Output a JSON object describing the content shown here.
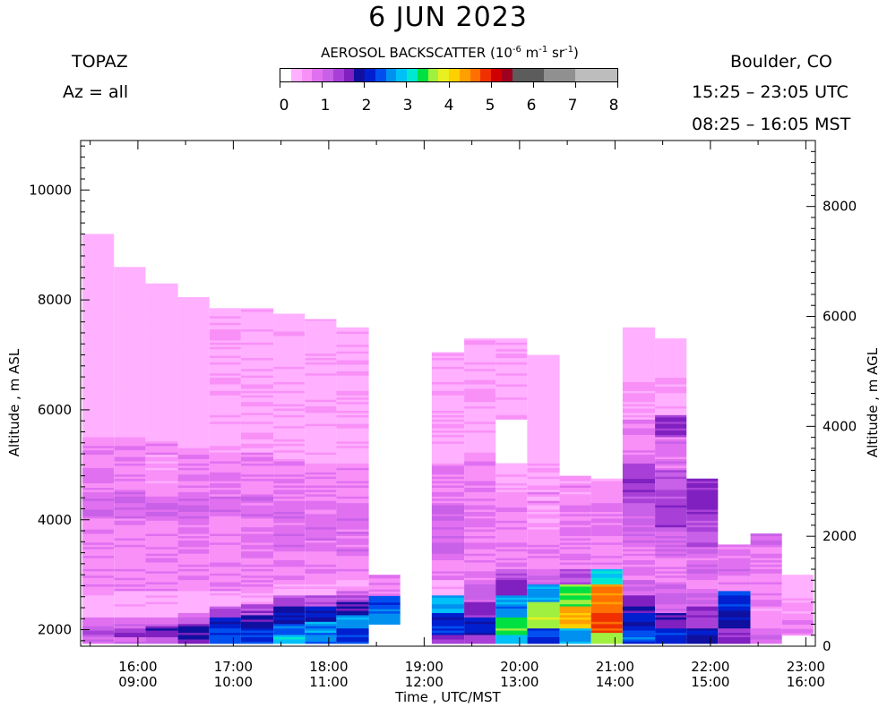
{
  "header": {
    "title": "6 JUN 2023",
    "site": "TOPAZ",
    "azimuth": "Az = all",
    "location": "Boulder, CO",
    "utc_range": "15:25 – 23:05 UTC",
    "mst_range": "08:25 – 16:05 MST"
  },
  "colorbar": {
    "title_prefix": "AEROSOL BACKSCATTER (10",
    "title_exp1": "-6",
    "title_mid1": " m",
    "title_exp2": "-1",
    "title_mid2": " sr",
    "title_exp3": "-1",
    "title_suffix": ")",
    "tick_labels": [
      "0",
      "1",
      "2",
      "3",
      "4",
      "5",
      "6",
      "7",
      "8"
    ],
    "colors": [
      "#ffffff",
      "#ffb0ff",
      "#f890f8",
      "#e070f0",
      "#c860e8",
      "#a840d8",
      "#8020c0",
      "#1010a0",
      "#0020d0",
      "#0050f0",
      "#0090f0",
      "#00c0f8",
      "#00e8d0",
      "#00e040",
      "#a0f040",
      "#e8f020",
      "#ffd000",
      "#ffa000",
      "#ff7000",
      "#f03000",
      "#d00000",
      "#a00020",
      "#5c5c5c",
      "#5c5c5c",
      "#5c5c5c",
      "#909090",
      "#909090",
      "#909090",
      "#bdbdbd",
      "#bdbdbd",
      "#bdbdbd",
      "#bdbdbd"
    ]
  },
  "chart_data": {
    "type": "heatmap",
    "title": "6 JUN 2023",
    "xlabel": "Time , UTC/MST",
    "ylabel_left": "Altitude , m ASL",
    "ylabel_right": "Altitude , m AGL",
    "x_ticks_utc": [
      "16:00",
      "17:00",
      "18:00",
      "19:00",
      "20:00",
      "21:00",
      "22:00",
      "23:00"
    ],
    "x_ticks_mst": [
      "09:00",
      "10:00",
      "11:00",
      "12:00",
      "13:00",
      "14:00",
      "15:00",
      "16:00"
    ],
    "x_range_hours_utc": [
      15.4,
      23.1
    ],
    "y_ticks_asl": [
      2000,
      4000,
      6000,
      8000,
      10000
    ],
    "y_ticks_agl": [
      0,
      2000,
      4000,
      6000,
      8000
    ],
    "ylim_asl": [
      1700,
      10900
    ],
    "agl_offset_m": 1700,
    "units": "10^-6 m^-1 sr^-1",
    "value_range": [
      0,
      8
    ],
    "profiles": [
      {
        "t_start": 15.42,
        "t_end": 15.75,
        "top": 9200,
        "layers": [
          [
            1750,
            0.9,
            0
          ],
          [
            1850,
            1.2,
            0
          ],
          [
            2000,
            0.8,
            0
          ],
          [
            2200,
            0.3,
            0
          ],
          [
            2700,
            0.6,
            0
          ],
          [
            4000,
            0.9,
            0
          ],
          [
            4500,
            0.6,
            0
          ],
          [
            5500,
            0.2,
            0
          ]
        ]
      },
      {
        "t_start": 15.75,
        "t_end": 16.08,
        "top": 8600,
        "layers": [
          [
            1750,
            0.9,
            0
          ],
          [
            1850,
            1.4,
            0
          ],
          [
            2000,
            0.8,
            0
          ],
          [
            2200,
            0.3,
            0
          ],
          [
            2700,
            0.6,
            0
          ],
          [
            4000,
            0.9,
            0
          ],
          [
            4500,
            0.6,
            0
          ],
          [
            5500,
            0.2,
            0
          ]
        ]
      },
      {
        "t_start": 16.08,
        "t_end": 16.42,
        "top": 8300,
        "layers": [
          [
            1750,
            1.1,
            0
          ],
          [
            1850,
            1.6,
            0
          ],
          [
            2050,
            1.0,
            0
          ],
          [
            2200,
            0.3,
            0
          ],
          [
            2700,
            0.6,
            0
          ],
          [
            4000,
            0.9,
            0
          ],
          [
            4400,
            0.5,
            0
          ],
          [
            5400,
            0.2,
            0
          ]
        ]
      },
      {
        "t_start": 16.42,
        "t_end": 16.75,
        "top": 8050,
        "layers": [
          [
            1750,
            1.6,
            0
          ],
          [
            1950,
            1.8,
            0
          ],
          [
            2100,
            1.0,
            0
          ],
          [
            2300,
            0.3,
            0
          ],
          [
            2700,
            0.6,
            0
          ],
          [
            4000,
            0.9,
            0
          ],
          [
            4400,
            0.6,
            0
          ],
          [
            5300,
            0.2,
            0
          ]
        ]
      },
      {
        "t_start": 16.75,
        "t_end": 17.08,
        "top": 7850,
        "layers": [
          [
            1750,
            2.3,
            0
          ],
          [
            2000,
            2.0,
            0
          ],
          [
            2200,
            1.2,
            0
          ],
          [
            2400,
            0.3,
            0
          ],
          [
            2700,
            0.6,
            0
          ],
          [
            4000,
            0.8,
            0
          ],
          [
            4400,
            0.6,
            0
          ],
          [
            5200,
            0.3,
            0
          ]
        ]
      },
      {
        "t_start": 17.08,
        "t_end": 17.42,
        "top": 7850,
        "layers": [
          [
            1750,
            2.1,
            0
          ],
          [
            2000,
            1.8,
            0
          ],
          [
            2250,
            1.3,
            0
          ],
          [
            2450,
            0.3,
            0
          ],
          [
            2700,
            0.6,
            0
          ],
          [
            4000,
            0.8,
            0
          ],
          [
            4400,
            0.6,
            0
          ],
          [
            5200,
            0.3,
            0
          ]
        ]
      },
      {
        "t_start": 17.42,
        "t_end": 17.75,
        "top": 7750,
        "layers": [
          [
            1750,
            2.9,
            0
          ],
          [
            1900,
            2.3,
            0
          ],
          [
            2100,
            1.8,
            0
          ],
          [
            2400,
            1.2,
            0
          ],
          [
            2600,
            0.3,
            0
          ],
          [
            2800,
            0.6,
            0
          ],
          [
            3400,
            0.8,
            0
          ],
          [
            4200,
            0.6,
            0
          ],
          [
            5100,
            0.3,
            0
          ]
        ]
      },
      {
        "t_start": 17.75,
        "t_end": 18.08,
        "top": 7650,
        "layers": [
          [
            1750,
            2.3,
            0
          ],
          [
            1950,
            2.6,
            0
          ],
          [
            2150,
            1.9,
            0
          ],
          [
            2400,
            1.2,
            0
          ],
          [
            2600,
            0.3,
            0
          ],
          [
            2800,
            0.6,
            0
          ],
          [
            3400,
            0.8,
            0
          ],
          [
            4200,
            0.6,
            0
          ],
          [
            5000,
            0.3,
            0
          ]
        ]
      },
      {
        "t_start": 18.08,
        "t_end": 18.42,
        "top": 7500,
        "layers": [
          [
            1750,
            2.1,
            0
          ],
          [
            2000,
            2.7,
            0
          ],
          [
            2250,
            1.8,
            0
          ],
          [
            2500,
            1.0,
            0
          ],
          [
            2700,
            0.3,
            0
          ],
          [
            2900,
            0.6,
            0
          ],
          [
            3400,
            0.8,
            0
          ],
          [
            4200,
            0.6,
            0
          ],
          [
            5000,
            0.3,
            0
          ]
        ]
      },
      {
        "t_start": 18.42,
        "t_end": 18.75,
        "top": 3000,
        "layers": [
          [
            2100,
            2.6,
            0
          ],
          [
            2350,
            2.3,
            0
          ],
          [
            2600,
            0.6,
            0
          ]
        ],
        "bottom": 2100
      },
      {
        "t_start": 19.08,
        "t_end": 19.42,
        "top": 7050,
        "layers": [
          [
            1750,
            1.4,
            0
          ],
          [
            1900,
            2.2,
            0
          ],
          [
            2100,
            2.0,
            0
          ],
          [
            2300,
            2.8,
            0
          ],
          [
            2600,
            0.3,
            0
          ],
          [
            2900,
            0.6,
            0
          ],
          [
            3300,
            0.9,
            0
          ],
          [
            4300,
            0.6,
            0
          ],
          [
            5000,
            0.3,
            0
          ]
        ]
      },
      {
        "t_start": 19.42,
        "t_end": 19.75,
        "top": 7300,
        "layers": [
          [
            1750,
            1.4,
            0
          ],
          [
            1900,
            2.0,
            0
          ],
          [
            2200,
            1.5,
            0
          ],
          [
            2500,
            1.0,
            0
          ],
          [
            2800,
            0.6,
            0
          ],
          [
            3300,
            0.7,
            0
          ],
          [
            4300,
            0.6,
            0
          ],
          [
            5200,
            0.3,
            0
          ]
        ]
      },
      {
        "t_start": 19.75,
        "t_end": 20.08,
        "top": 7300,
        "layers": [
          [
            1750,
            2.9,
            0
          ],
          [
            1900,
            3.4,
            0
          ],
          [
            2200,
            2.6,
            0
          ],
          [
            2600,
            1.6,
            0
          ],
          [
            2900,
            1.1,
            0
          ],
          [
            3100,
            0.6,
            0
          ],
          [
            3500,
            0.6,
            0
          ],
          [
            4500,
            0.3,
            0
          ],
          [
            5000,
            0,
            1
          ],
          [
            5800,
            0.3,
            0
          ]
        ]
      },
      {
        "t_start": 20.08,
        "t_end": 20.42,
        "top": 7000,
        "layers": [
          [
            1750,
            2.1,
            0
          ],
          [
            2000,
            3.6,
            0
          ],
          [
            2500,
            2.6,
            0
          ],
          [
            2800,
            1.0,
            0
          ],
          [
            3000,
            0.6,
            0
          ],
          [
            3500,
            0.5,
            0
          ],
          [
            4500,
            0.3,
            0
          ],
          [
            5000,
            0.2,
            0
          ]
        ]
      },
      {
        "t_start": 20.42,
        "t_end": 20.75,
        "top": 4800,
        "layers": [
          [
            1750,
            2.6,
            0
          ],
          [
            2000,
            4.3,
            0
          ],
          [
            2400,
            3.4,
            0
          ],
          [
            2800,
            1.2,
            0
          ],
          [
            3100,
            0.6,
            0
          ],
          [
            3700,
            0.7,
            0
          ],
          [
            4300,
            0.5,
            0
          ]
        ]
      },
      {
        "t_start": 20.75,
        "t_end": 21.08,
        "top": 4750,
        "layers": [
          [
            1750,
            3.6,
            0
          ],
          [
            1950,
            4.8,
            0
          ],
          [
            2400,
            4.5,
            0
          ],
          [
            2800,
            3.0,
            0
          ],
          [
            3100,
            0.6,
            0
          ],
          [
            3700,
            0.7,
            0
          ],
          [
            4300,
            0.5,
            0
          ]
        ]
      },
      {
        "t_start": 21.08,
        "t_end": 21.42,
        "top": 7500,
        "layers": [
          [
            1750,
            2.3,
            0
          ],
          [
            2000,
            2.0,
            0
          ],
          [
            2300,
            1.6,
            0
          ],
          [
            2600,
            1.0,
            0
          ],
          [
            2900,
            0.6,
            0
          ],
          [
            3500,
            0.9,
            0
          ],
          [
            3900,
            1.0,
            0
          ],
          [
            4300,
            1.3,
            0
          ],
          [
            5000,
            0.7,
            0
          ],
          [
            5800,
            0.4,
            0
          ],
          [
            6500,
            0.2,
            0
          ]
        ]
      },
      {
        "t_start": 21.42,
        "t_end": 21.75,
        "top": 7300,
        "layers": [
          [
            1750,
            2.1,
            0
          ],
          [
            2000,
            1.6,
            0
          ],
          [
            2300,
            0.9,
            0
          ],
          [
            2800,
            0.6,
            0
          ],
          [
            3300,
            0.9,
            0
          ],
          [
            3800,
            1.3,
            0
          ],
          [
            4500,
            1.1,
            0
          ],
          [
            4900,
            0.8,
            0
          ],
          [
            5500,
            1.4,
            0
          ],
          [
            5900,
            0.4,
            0
          ],
          [
            6600,
            0.2,
            0
          ]
        ]
      },
      {
        "t_start": 21.75,
        "t_end": 22.08,
        "top": 4750,
        "layers": [
          [
            1750,
            1.9,
            0
          ],
          [
            2000,
            1.5,
            0
          ],
          [
            2400,
            0.9,
            0
          ],
          [
            2700,
            0.6,
            0
          ],
          [
            3000,
            0.8,
            0
          ],
          [
            3500,
            1.1,
            0
          ],
          [
            4000,
            1.5,
            0
          ]
        ]
      },
      {
        "t_start": 22.08,
        "t_end": 22.42,
        "top": 3550,
        "layers": [
          [
            1750,
            1.4,
            0
          ],
          [
            2000,
            1.9,
            0
          ],
          [
            2400,
            2.2,
            0
          ],
          [
            2700,
            0.6,
            0
          ],
          [
            3000,
            0.8,
            0
          ]
        ]
      },
      {
        "t_start": 22.42,
        "t_end": 22.75,
        "top": 3750,
        "layers": [
          [
            1750,
            0.8,
            0
          ],
          [
            2000,
            0.5,
            0
          ],
          [
            2400,
            0.6,
            0
          ],
          [
            3000,
            0.6,
            0
          ],
          [
            3500,
            0.9,
            0
          ]
        ]
      },
      {
        "t_start": 22.75,
        "t_end": 23.08,
        "top": 3000,
        "layers": [
          [
            1900,
            0.6,
            0
          ],
          [
            2200,
            0.4,
            0
          ],
          [
            2600,
            0.2,
            0
          ]
        ],
        "bottom": 1900
      }
    ]
  }
}
